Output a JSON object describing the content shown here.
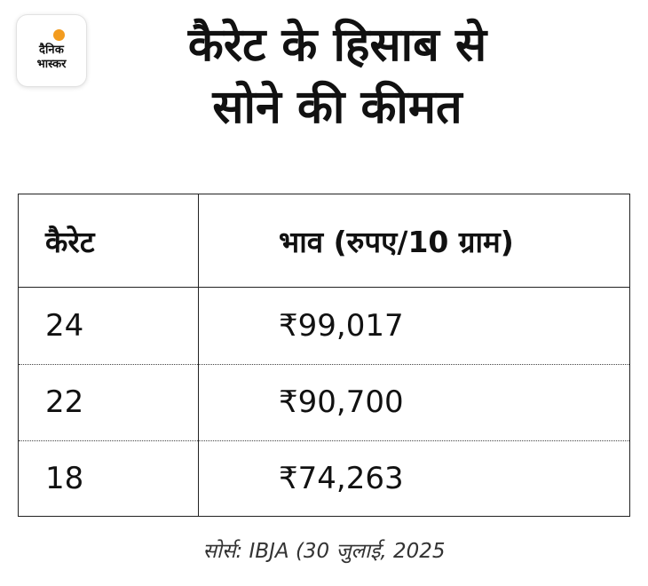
{
  "brand": {
    "line1": "दैनिक",
    "line2": "भास्कर"
  },
  "title": {
    "line1": "कैरेट के हिसाब से",
    "line2": "सोने की कीमत"
  },
  "table": {
    "headers": [
      "कैरेट",
      "भाव (रुपए/10 ग्राम)"
    ],
    "rows": [
      {
        "carat": "24",
        "price": "₹99,017"
      },
      {
        "carat": "22",
        "price": "₹90,700"
      },
      {
        "carat": "18",
        "price": "₹74,263"
      }
    ]
  },
  "source": "सोर्स: IBJA (30 जुलाई, 2025",
  "colors": {
    "brand_accent": "#f39c1f",
    "text": "#111111",
    "border": "#222222"
  }
}
